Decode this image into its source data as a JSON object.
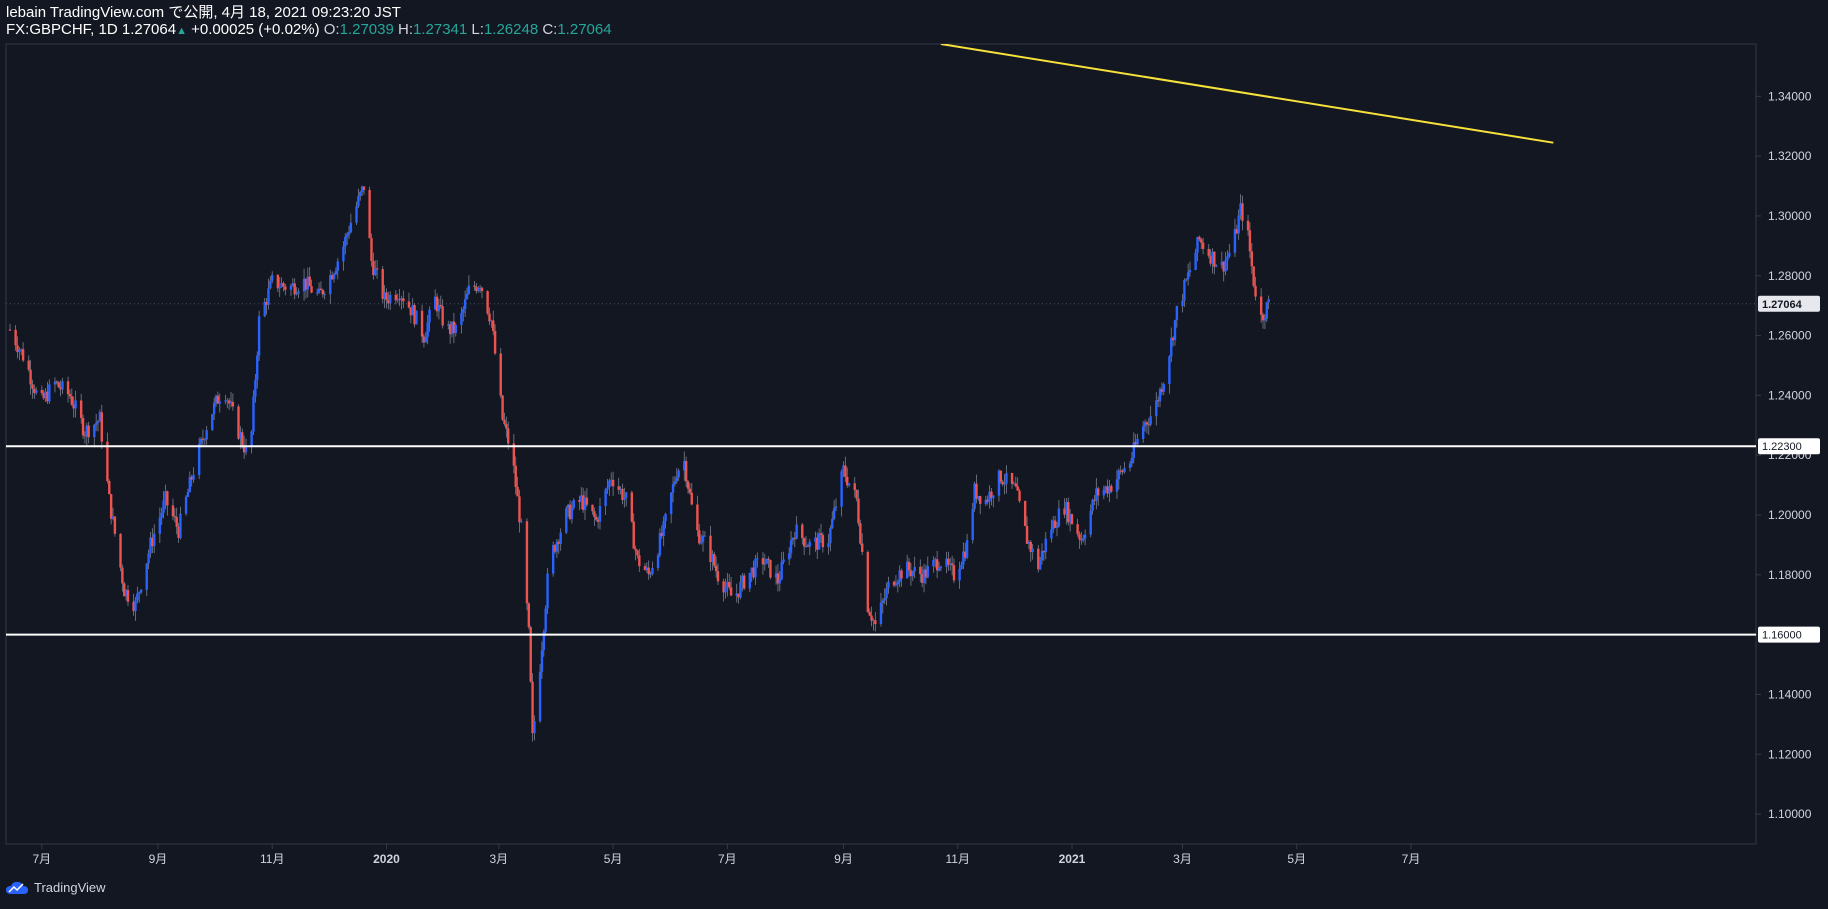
{
  "header": {
    "publisher": "lebain TradingView.com で公開, 4月 18, 2021 09:23:20 JST",
    "symbol": "FX:GBPCHF, 1D",
    "last": "1.27064",
    "change": "+0.00025 (+0.02%)",
    "o_label": "O:",
    "o_value": "1.27039",
    "h_label": "H:",
    "h_value": "1.27341",
    "l_label": "L:",
    "l_value": "1.26248",
    "c_label": "C:",
    "c_value": "1.27064"
  },
  "footer": {
    "brand": "TradingView"
  },
  "colors": {
    "background": "#131722",
    "up": "#2962ff",
    "down": "#ef5350",
    "trendline": "#f7e13b",
    "hline": "#ffffff",
    "axis_text": "#d1d4dc",
    "grid_border": "#363a45"
  },
  "chart_data": {
    "type": "candlestick",
    "title": "FX:GBPCHF, 1D",
    "ylim": [
      1.09,
      1.3575
    ],
    "y_ticks": [
      "1.10000",
      "1.12000",
      "1.14000",
      "1.16000",
      "1.18000",
      "1.20000",
      "1.22000",
      "1.24000",
      "1.26000",
      "1.28000",
      "1.30000",
      "1.32000",
      "1.34000"
    ],
    "x_ticks": [
      "7月",
      "9月",
      "11月",
      "2020",
      "3月",
      "5月",
      "7月",
      "9月",
      "11月",
      "2021",
      "3月",
      "5月",
      "7月"
    ],
    "last_price": 1.27064,
    "last_price_label": "1.27064",
    "horizontal_lines": [
      {
        "value": 1.223,
        "label": "1.22300"
      },
      {
        "value": 1.16,
        "label": "1.16000"
      }
    ],
    "trendline": {
      "start": {
        "x": "2020-10-23",
        "y": 1.3575
      },
      "end": {
        "x": "2021-09-15",
        "y": 1.3245
      }
    },
    "close_path": [
      [
        "2019-06-14",
        1.262
      ],
      [
        "2019-06-22",
        1.252
      ],
      [
        "2019-06-30",
        1.237
      ],
      [
        "2019-07-08",
        1.244
      ],
      [
        "2019-07-16",
        1.24
      ],
      [
        "2019-07-24",
        1.228
      ],
      [
        "2019-08-01",
        1.232
      ],
      [
        "2019-08-06",
        1.205
      ],
      [
        "2019-08-14",
        1.175
      ],
      [
        "2019-08-20",
        1.17
      ],
      [
        "2019-08-28",
        1.19
      ],
      [
        "2019-09-05",
        1.205
      ],
      [
        "2019-09-12",
        1.195
      ],
      [
        "2019-09-20",
        1.215
      ],
      [
        "2019-09-28",
        1.232
      ],
      [
        "2019-10-06",
        1.243
      ],
      [
        "2019-10-14",
        1.228
      ],
      [
        "2019-10-20",
        1.218
      ],
      [
        "2019-10-25",
        1.265
      ],
      [
        "2019-11-01",
        1.278
      ],
      [
        "2019-11-10",
        1.276
      ],
      [
        "2019-11-18",
        1.278
      ],
      [
        "2019-11-26",
        1.273
      ],
      [
        "2019-12-02",
        1.28
      ],
      [
        "2019-12-08",
        1.288
      ],
      [
        "2019-12-14",
        1.3
      ],
      [
        "2019-12-20",
        1.31
      ],
      [
        "2019-12-24",
        1.285
      ],
      [
        "2019-12-31",
        1.272
      ],
      [
        "2020-01-08",
        1.275
      ],
      [
        "2020-01-15",
        1.268
      ],
      [
        "2020-01-21",
        1.26
      ],
      [
        "2020-01-27",
        1.272
      ],
      [
        "2020-02-02",
        1.262
      ],
      [
        "2020-02-08",
        1.262
      ],
      [
        "2020-02-14",
        1.275
      ],
      [
        "2020-02-20",
        1.278
      ],
      [
        "2020-02-26",
        1.265
      ],
      [
        "2020-03-03",
        1.232
      ],
      [
        "2020-03-08",
        1.22
      ],
      [
        "2020-03-13",
        1.195
      ],
      [
        "2020-03-17",
        1.16
      ],
      [
        "2020-03-19",
        1.125
      ],
      [
        "2020-03-23",
        1.15
      ],
      [
        "2020-03-28",
        1.185
      ],
      [
        "2020-04-06",
        1.2
      ],
      [
        "2020-04-14",
        1.205
      ],
      [
        "2020-04-22",
        1.198
      ],
      [
        "2020-04-30",
        1.213
      ],
      [
        "2020-05-08",
        1.205
      ],
      [
        "2020-05-14",
        1.185
      ],
      [
        "2020-05-20",
        1.18
      ],
      [
        "2020-05-28",
        1.195
      ],
      [
        "2020-06-04",
        1.215
      ],
      [
        "2020-06-08",
        1.218
      ],
      [
        "2020-06-14",
        1.195
      ],
      [
        "2020-06-20",
        1.19
      ],
      [
        "2020-06-26",
        1.18
      ],
      [
        "2020-07-04",
        1.172
      ],
      [
        "2020-07-12",
        1.18
      ],
      [
        "2020-07-20",
        1.185
      ],
      [
        "2020-07-28",
        1.178
      ],
      [
        "2020-08-06",
        1.195
      ],
      [
        "2020-08-14",
        1.19
      ],
      [
        "2020-08-24",
        1.192
      ],
      [
        "2020-09-01",
        1.215
      ],
      [
        "2020-09-08",
        1.205
      ],
      [
        "2020-09-14",
        1.17
      ],
      [
        "2020-09-18",
        1.163
      ],
      [
        "2020-09-26",
        1.178
      ],
      [
        "2020-10-04",
        1.182
      ],
      [
        "2020-10-14",
        1.18
      ],
      [
        "2020-10-22",
        1.185
      ],
      [
        "2020-10-30",
        1.18
      ],
      [
        "2020-11-06",
        1.19
      ],
      [
        "2020-11-10",
        1.208
      ],
      [
        "2020-11-16",
        1.205
      ],
      [
        "2020-11-24",
        1.213
      ],
      [
        "2020-12-02",
        1.208
      ],
      [
        "2020-12-08",
        1.192
      ],
      [
        "2020-12-14",
        1.183
      ],
      [
        "2020-12-20",
        1.195
      ],
      [
        "2020-12-28",
        1.203
      ],
      [
        "2021-01-06",
        1.192
      ],
      [
        "2021-01-14",
        1.207
      ],
      [
        "2021-01-22",
        1.21
      ],
      [
        "2021-02-01",
        1.218
      ],
      [
        "2021-02-08",
        1.23
      ],
      [
        "2021-02-14",
        1.235
      ],
      [
        "2021-02-20",
        1.248
      ],
      [
        "2021-02-26",
        1.268
      ],
      [
        "2021-03-04",
        1.28
      ],
      [
        "2021-03-10",
        1.292
      ],
      [
        "2021-03-16",
        1.287
      ],
      [
        "2021-03-22",
        1.283
      ],
      [
        "2021-03-28",
        1.29
      ],
      [
        "2021-04-01",
        1.302
      ],
      [
        "2021-04-04",
        1.298
      ],
      [
        "2021-04-08",
        1.278
      ],
      [
        "2021-04-12",
        1.266
      ],
      [
        "2021-04-16",
        1.27064
      ]
    ]
  }
}
